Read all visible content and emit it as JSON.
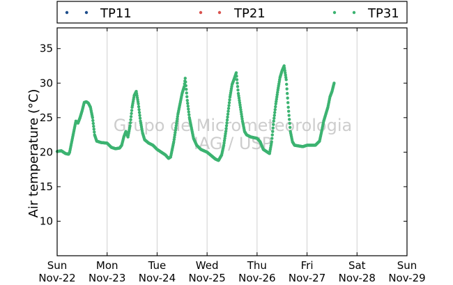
{
  "chart_data": {
    "type": "scatter",
    "ylabel": "Air temperature (°C)",
    "ylim": [
      5,
      38
    ],
    "yticks": [
      10,
      15,
      20,
      25,
      30,
      35
    ],
    "xlim": [
      "2015-11-22",
      "2015-11-29"
    ],
    "xticks": [
      {
        "weekday": "Sun",
        "date": "Nov-22"
      },
      {
        "weekday": "Mon",
        "date": "Nov-23"
      },
      {
        "weekday": "Tue",
        "date": "Nov-24"
      },
      {
        "weekday": "Wed",
        "date": "Nov-25"
      },
      {
        "weekday": "Thu",
        "date": "Nov-26"
      },
      {
        "weekday": "Fri",
        "date": "Nov-27"
      },
      {
        "weekday": "Sat",
        "date": "Nov-28"
      },
      {
        "weekday": "Sun",
        "date": "Nov-29"
      }
    ],
    "grid": "vertical",
    "legend_position": "top",
    "watermark": [
      "Grupo de Micrometeorologia",
      "IAG / USP"
    ],
    "series": [
      {
        "name": "TP11",
        "color": "#1f4e8c",
        "points": []
      },
      {
        "name": "TP21",
        "color": "#d9534f",
        "points": []
      },
      {
        "name": "TP31",
        "color": "#3cb371",
        "points": [
          [
            "2015-11-22 00:00",
            20.1
          ],
          [
            "2015-11-22 02:00",
            20.2
          ],
          [
            "2015-11-22 04:00",
            19.8
          ],
          [
            "2015-11-22 05:30",
            19.7
          ],
          [
            "2015-11-22 06:00",
            20.0
          ],
          [
            "2015-11-22 07:00",
            21.5
          ],
          [
            "2015-11-22 08:00",
            23.0
          ],
          [
            "2015-11-22 09:00",
            24.5
          ],
          [
            "2015-11-22 10:00",
            24.2
          ],
          [
            "2015-11-22 11:00",
            25.0
          ],
          [
            "2015-11-22 12:00",
            26.0
          ],
          [
            "2015-11-22 13:00",
            27.2
          ],
          [
            "2015-11-22 14:00",
            27.3
          ],
          [
            "2015-11-22 15:00",
            27.1
          ],
          [
            "2015-11-22 16:00",
            26.5
          ],
          [
            "2015-11-22 17:00",
            25.0
          ],
          [
            "2015-11-22 18:00",
            22.5
          ],
          [
            "2015-11-22 19:00",
            21.6
          ],
          [
            "2015-11-22 21:00",
            21.4
          ],
          [
            "2015-11-23 00:00",
            21.3
          ],
          [
            "2015-11-23 02:00",
            20.7
          ],
          [
            "2015-11-23 04:00",
            20.5
          ],
          [
            "2015-11-23 06:00",
            20.6
          ],
          [
            "2015-11-23 07:00",
            21.0
          ],
          [
            "2015-11-23 08:00",
            22.2
          ],
          [
            "2015-11-23 09:00",
            23.0
          ],
          [
            "2015-11-23 10:00",
            22.2
          ],
          [
            "2015-11-23 11:00",
            23.8
          ],
          [
            "2015-11-23 12:00",
            26.5
          ],
          [
            "2015-11-23 13:00",
            28.2
          ],
          [
            "2015-11-23 14:00",
            28.8
          ],
          [
            "2015-11-23 15:00",
            27.0
          ],
          [
            "2015-11-23 16:00",
            24.5
          ],
          [
            "2015-11-23 17:00",
            22.8
          ],
          [
            "2015-11-23 18:00",
            21.8
          ],
          [
            "2015-11-23 20:00",
            21.3
          ],
          [
            "2015-11-23 22:00",
            21.0
          ],
          [
            "2015-11-24 00:00",
            20.4
          ],
          [
            "2015-11-24 02:00",
            20.0
          ],
          [
            "2015-11-24 04:00",
            19.6
          ],
          [
            "2015-11-24 05:30",
            19.1
          ],
          [
            "2015-11-24 06:30",
            19.3
          ],
          [
            "2015-11-24 08:00",
            21.5
          ],
          [
            "2015-11-24 09:00",
            23.5
          ],
          [
            "2015-11-24 10:00",
            25.5
          ],
          [
            "2015-11-24 11:00",
            27.0
          ],
          [
            "2015-11-24 12:00",
            28.5
          ],
          [
            "2015-11-24 13:00",
            29.5
          ],
          [
            "2015-11-24 13:30",
            30.7
          ],
          [
            "2015-11-24 14:30",
            27.5
          ],
          [
            "2015-11-24 15:30",
            25.0
          ],
          [
            "2015-11-24 16:30",
            23.5
          ],
          [
            "2015-11-24 17:30",
            22.0
          ],
          [
            "2015-11-24 19:00",
            21.0
          ],
          [
            "2015-11-24 21:00",
            20.4
          ],
          [
            "2015-11-25 00:00",
            20.0
          ],
          [
            "2015-11-25 02:00",
            19.5
          ],
          [
            "2015-11-25 04:00",
            19.0
          ],
          [
            "2015-11-25 05:30",
            18.8
          ],
          [
            "2015-11-25 07:00",
            19.6
          ],
          [
            "2015-11-25 08:00",
            21.0
          ],
          [
            "2015-11-25 09:00",
            23.0
          ],
          [
            "2015-11-25 10:00",
            25.5
          ],
          [
            "2015-11-25 11:00",
            28.0
          ],
          [
            "2015-11-25 12:00",
            29.8
          ],
          [
            "2015-11-25 13:00",
            30.6
          ],
          [
            "2015-11-25 14:00",
            31.5
          ],
          [
            "2015-11-25 15:00",
            28.5
          ],
          [
            "2015-11-25 16:00",
            26.5
          ],
          [
            "2015-11-25 17:00",
            24.5
          ],
          [
            "2015-11-25 18:00",
            23.0
          ],
          [
            "2015-11-25 19:00",
            22.5
          ],
          [
            "2015-11-25 21:00",
            22.2
          ],
          [
            "2015-11-26 00:00",
            22.0
          ],
          [
            "2015-11-26 01:30",
            21.5
          ],
          [
            "2015-11-26 03:00",
            20.4
          ],
          [
            "2015-11-26 05:00",
            20.0
          ],
          [
            "2015-11-26 06:00",
            19.8
          ],
          [
            "2015-11-26 07:00",
            21.5
          ],
          [
            "2015-11-26 08:00",
            24.5
          ],
          [
            "2015-11-26 09:00",
            27.0
          ],
          [
            "2015-11-26 10:00",
            29.0
          ],
          [
            "2015-11-26 11:00",
            30.8
          ],
          [
            "2015-11-26 12:00",
            31.8
          ],
          [
            "2015-11-26 13:00",
            32.5
          ],
          [
            "2015-11-26 14:00",
            30.5
          ],
          [
            "2015-11-26 15:00",
            26.5
          ],
          [
            "2015-11-26 16:00",
            23.0
          ],
          [
            "2015-11-26 17:00",
            21.5
          ],
          [
            "2015-11-26 18:00",
            21.0
          ],
          [
            "2015-11-26 20:00",
            20.9
          ],
          [
            "2015-11-26 22:00",
            20.8
          ],
          [
            "2015-11-27 00:00",
            21.0
          ],
          [
            "2015-11-27 02:00",
            21.0
          ],
          [
            "2015-11-27 04:00",
            21.0
          ],
          [
            "2015-11-27 06:00",
            21.6
          ],
          [
            "2015-11-27 07:00",
            23.0
          ],
          [
            "2015-11-27 08:00",
            24.5
          ],
          [
            "2015-11-27 09:00",
            25.5
          ],
          [
            "2015-11-27 10:00",
            26.5
          ],
          [
            "2015-11-27 11:00",
            28.0
          ],
          [
            "2015-11-27 12:00",
            28.8
          ],
          [
            "2015-11-27 13:00",
            30.0
          ]
        ]
      }
    ]
  }
}
